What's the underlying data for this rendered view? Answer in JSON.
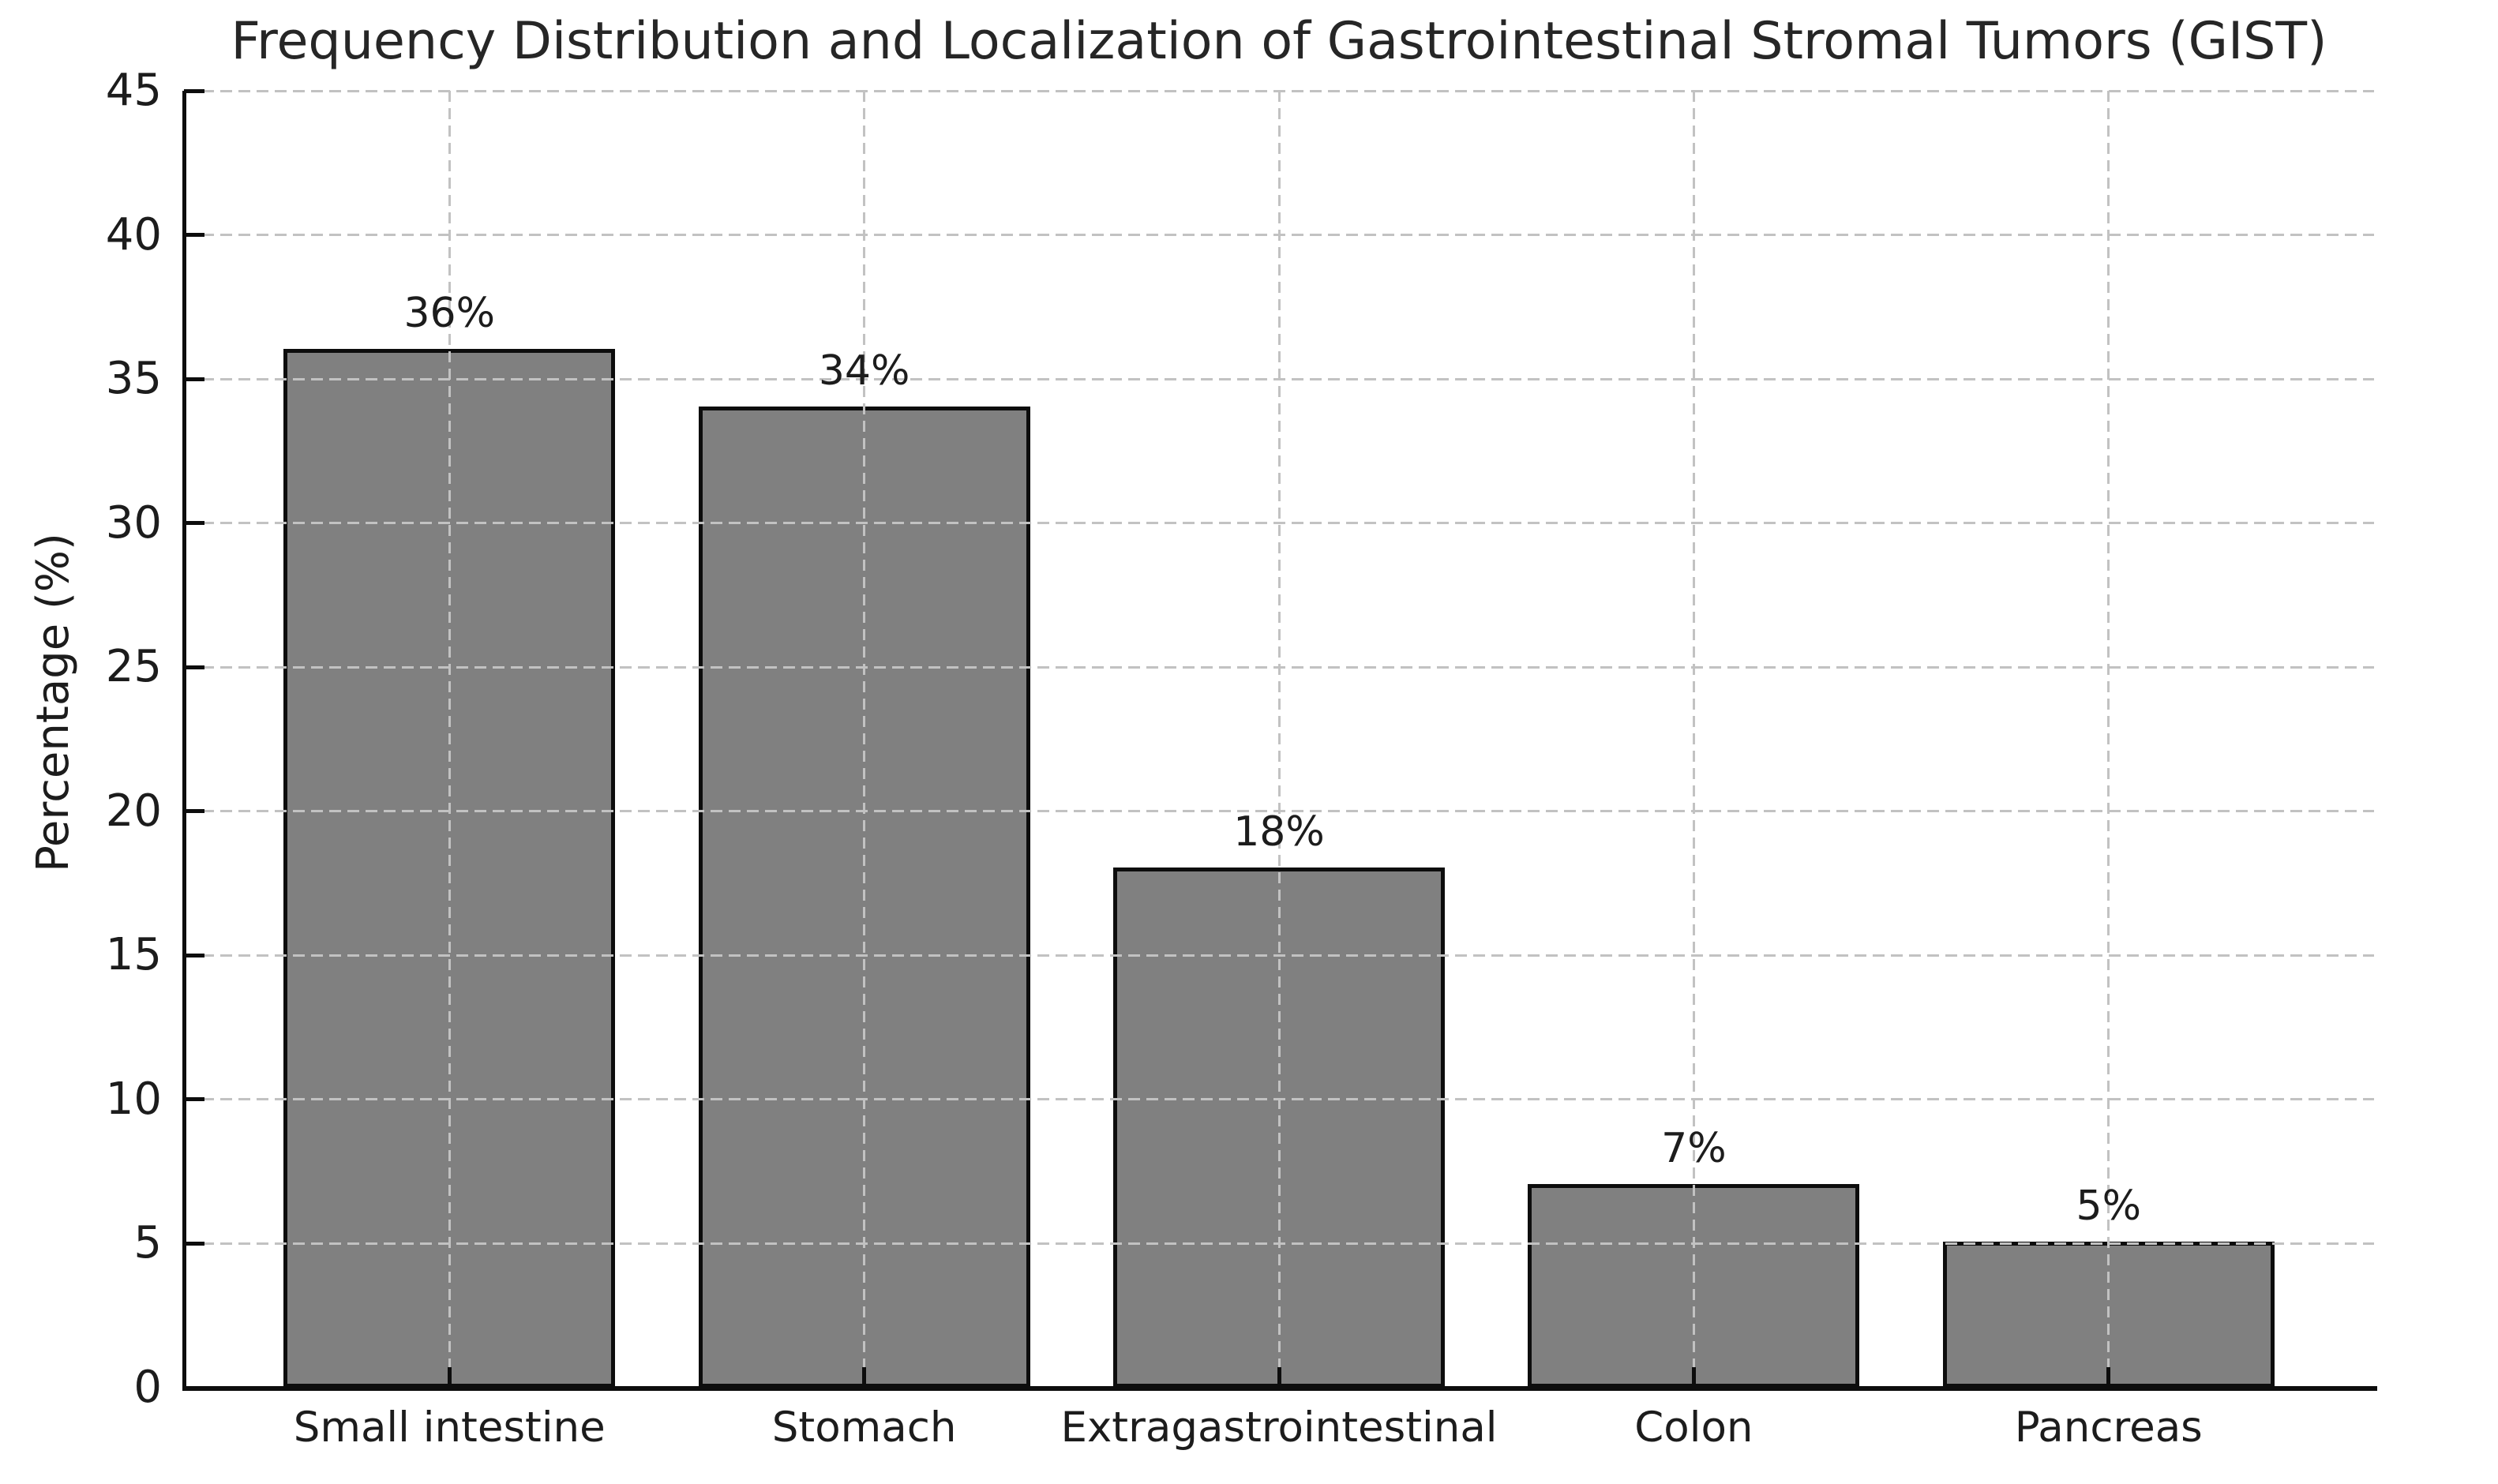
{
  "chart_data": {
    "type": "bar",
    "title": "Frequency Distribution and Localization of Gastrointestinal Stromal Tumors (GIST)",
    "xlabel": "",
    "ylabel": "Percentage (%)",
    "categories": [
      "Small intestine",
      "Stomach",
      "Extragastrointestinal",
      "Colon",
      "Pancreas"
    ],
    "values": [
      36,
      34,
      18,
      7,
      5
    ],
    "bar_labels": [
      "36%",
      "34%",
      "18%",
      "7%",
      "5%"
    ],
    "ylim": [
      0,
      45
    ],
    "yticks": [
      0,
      5,
      10,
      15,
      20,
      25,
      30,
      35,
      40,
      45
    ],
    "grid": "horizontal and vertical dashed gridlines, drawn above bars",
    "legend": "none",
    "colors": {
      "bar_fill": "#808080",
      "bar_edge": "#0d0d0d",
      "grid_line": "#c2c2c2",
      "axis_line": "#0d0d0d",
      "text": "#1c1c1c",
      "background": "#ffffff"
    }
  }
}
